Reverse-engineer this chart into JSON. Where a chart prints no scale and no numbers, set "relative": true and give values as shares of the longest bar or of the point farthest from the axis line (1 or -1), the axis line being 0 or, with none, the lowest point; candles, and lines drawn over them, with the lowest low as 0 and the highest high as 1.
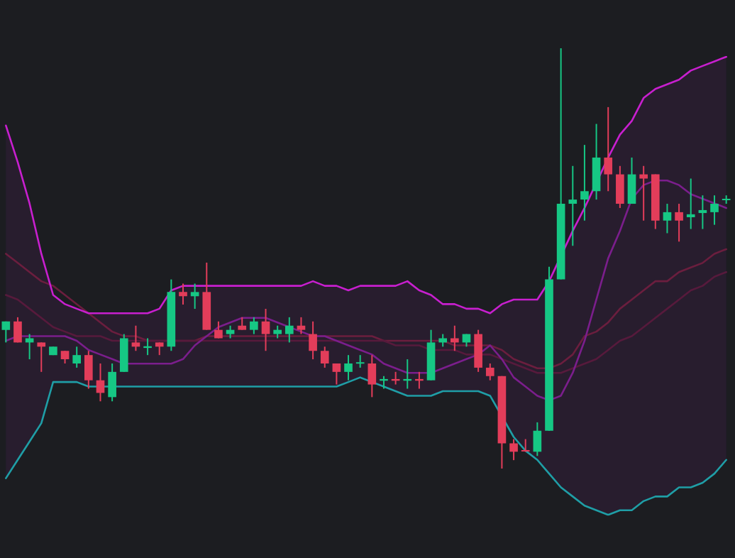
{
  "chart_data": [
    {
      "type": "candlestick",
      "relative": true,
      "grid": false,
      "categories": [
        null,
        null,
        null,
        null,
        null,
        null,
        null,
        null,
        null,
        null,
        null,
        null,
        null,
        null,
        null,
        null,
        null,
        null,
        null,
        null,
        null,
        null,
        null,
        null,
        null,
        null,
        null,
        null,
        null,
        null,
        null,
        null,
        null,
        null,
        null,
        null,
        null,
        null,
        null,
        null,
        null,
        null,
        null,
        null,
        null,
        null,
        null,
        null,
        null,
        null,
        null,
        null,
        null,
        null,
        null,
        null,
        null,
        null,
        null,
        null,
        null,
        null
      ],
      "ohlc": [
        [
          0.33,
          0.35,
          0.3,
          0.35
        ],
        [
          0.35,
          0.36,
          0.3,
          0.3
        ],
        [
          0.3,
          0.32,
          0.26,
          0.31
        ],
        [
          0.3,
          0.3,
          0.23,
          0.29
        ],
        [
          0.27,
          0.29,
          0.27,
          0.29
        ],
        [
          0.28,
          0.28,
          0.25,
          0.26
        ],
        [
          0.25,
          0.29,
          0.24,
          0.27
        ],
        [
          0.27,
          0.28,
          0.19,
          0.21
        ],
        [
          0.21,
          0.25,
          0.16,
          0.18
        ],
        [
          0.17,
          0.25,
          0.16,
          0.23
        ],
        [
          0.23,
          0.32,
          0.23,
          0.31
        ],
        [
          0.3,
          0.34,
          0.28,
          0.29
        ],
        [
          0.287,
          0.31,
          0.27,
          0.291
        ],
        [
          0.3,
          0.3,
          0.27,
          0.29
        ],
        [
          0.29,
          0.45,
          0.28,
          0.42
        ],
        [
          0.42,
          0.44,
          0.39,
          0.41
        ],
        [
          0.41,
          0.44,
          0.38,
          0.42
        ],
        [
          0.42,
          0.49,
          0.33,
          0.33
        ],
        [
          0.33,
          0.35,
          0.31,
          0.31
        ],
        [
          0.32,
          0.34,
          0.31,
          0.33
        ],
        [
          0.34,
          0.36,
          0.33,
          0.33
        ],
        [
          0.33,
          0.36,
          0.32,
          0.35
        ],
        [
          0.35,
          0.38,
          0.28,
          0.32
        ],
        [
          0.32,
          0.34,
          0.31,
          0.33
        ],
        [
          0.32,
          0.36,
          0.3,
          0.34
        ],
        [
          0.34,
          0.36,
          0.32,
          0.33
        ],
        [
          0.32,
          0.35,
          0.26,
          0.28
        ],
        [
          0.28,
          0.29,
          0.24,
          0.25
        ],
        [
          0.25,
          0.25,
          0.2,
          0.23
        ],
        [
          0.23,
          0.27,
          0.21,
          0.25
        ],
        [
          0.25,
          0.27,
          0.24,
          0.253
        ],
        [
          0.25,
          0.27,
          0.17,
          0.2
        ],
        [
          0.209,
          0.22,
          0.19,
          0.213
        ],
        [
          0.213,
          0.23,
          0.2,
          0.209
        ],
        [
          0.209,
          0.26,
          0.19,
          0.213
        ],
        [
          0.213,
          0.23,
          0.19,
          0.209
        ],
        [
          0.21,
          0.33,
          0.21,
          0.3
        ],
        [
          0.3,
          0.32,
          0.29,
          0.31
        ],
        [
          0.31,
          0.34,
          0.28,
          0.3
        ],
        [
          0.3,
          0.32,
          0.29,
          0.32
        ],
        [
          0.32,
          0.33,
          0.23,
          0.24
        ],
        [
          0.24,
          0.25,
          0.21,
          0.22
        ],
        [
          0.22,
          0.22,
          0,
          0.06
        ],
        [
          0.06,
          0.07,
          0.02,
          0.04
        ],
        [
          0.044,
          0.07,
          0.04,
          0.041
        ],
        [
          0.04,
          0.11,
          0.03,
          0.09
        ],
        [
          0.09,
          0.48,
          0.09,
          0.45
        ],
        [
          0.45,
          1,
          0.45,
          0.63
        ],
        [
          0.63,
          0.72,
          0.53,
          0.64
        ],
        [
          0.64,
          0.77,
          0.59,
          0.66
        ],
        [
          0.66,
          0.82,
          0.64,
          0.74
        ],
        [
          0.74,
          0.86,
          0.66,
          0.7
        ],
        [
          0.7,
          0.72,
          0.62,
          0.63
        ],
        [
          0.63,
          0.74,
          0.63,
          0.7
        ],
        [
          0.7,
          0.72,
          0.59,
          0.69
        ],
        [
          0.7,
          0.7,
          0.57,
          0.59
        ],
        [
          0.59,
          0.63,
          0.56,
          0.61
        ],
        [
          0.61,
          0.63,
          0.54,
          0.59
        ],
        [
          0.598,
          0.69,
          0.57,
          0.605
        ],
        [
          0.608,
          0.65,
          0.57,
          0.615
        ],
        [
          0.61,
          0.65,
          0.58,
          0.63
        ],
        [
          0.639,
          0.65,
          0.63,
          0.642
        ]
      ],
      "colors": [
        "#16c784",
        "#e33d5a",
        "#16c784",
        "#e33d5a",
        "#16c784",
        "#e33d5a",
        "#16c784",
        "#e33d5a",
        "#e33d5a",
        "#16c784",
        "#16c784",
        "#e33d5a",
        "#16c784",
        "#e33d5a",
        "#16c784",
        "#e33d5a",
        "#16c784",
        "#e33d5a",
        "#e33d5a",
        "#16c784",
        "#e33d5a",
        "#16c784",
        "#e33d5a",
        "#16c784",
        "#16c784",
        "#e33d5a",
        "#e33d5a",
        "#e33d5a",
        "#e33d5a",
        "#16c784",
        "#16c784",
        "#e33d5a",
        "#16c784",
        "#e33d5a",
        "#16c784",
        "#e33d5a",
        "#16c784",
        "#16c784",
        "#e33d5a",
        "#16c784",
        "#e33d5a",
        "#e33d5a",
        "#e33d5a",
        "#e33d5a",
        "#e33d5a",
        "#16c784",
        "#16c784",
        "#16c784",
        "#16c784",
        "#16c784",
        "#16c784",
        "#e33d5a",
        "#e33d5a",
        "#16c784",
        "#e33d5a",
        "#e33d5a",
        "#16c784",
        "#e33d5a",
        "#16c784",
        "#16c784",
        "#16c784",
        "#16c784"
      ]
    },
    {
      "type": "line",
      "relative": true,
      "grid": false,
      "marker": "none",
      "line_style": "solid",
      "categories": [
        null,
        null,
        null,
        null,
        null,
        null,
        null,
        null,
        null,
        null,
        null,
        null,
        null,
        null,
        null,
        null,
        null,
        null,
        null,
        null,
        null,
        null,
        null,
        null,
        null,
        null,
        null,
        null,
        null,
        null,
        null,
        null,
        null,
        null,
        null,
        null,
        null,
        null,
        null,
        null,
        null,
        null,
        null,
        null,
        null,
        null,
        null,
        null,
        null,
        null,
        null,
        null,
        null,
        null,
        null,
        null,
        null,
        null,
        null,
        null,
        null,
        null
      ],
      "series": [
        {
          "color": "#6b1e3e",
          "values": [
            0.57,
            0.55,
            0.53,
            0.51,
            0.5,
            0.48,
            0.46,
            0.44,
            0.42,
            0.4,
            0.39,
            0.39,
            0.38,
            0.38,
            0.38,
            0.38,
            0.38,
            0.39,
            0.39,
            0.39,
            0.39,
            0.39,
            0.39,
            0.39,
            0.39,
            0.39,
            0.39,
            0.39,
            0.39,
            0.39,
            0.39,
            0.39,
            0.38,
            0.38,
            0.38,
            0.38,
            0.38,
            0.38,
            0.37,
            0.37,
            0.37,
            0.37,
            0.36,
            0.34,
            0.33,
            0.32,
            0.32,
            0.33,
            0.35,
            0.39,
            0.4,
            0.42,
            0.45,
            0.47,
            0.49,
            0.51,
            0.51,
            0.53,
            0.54,
            0.55,
            0.57,
            0.58
          ]
        },
        {
          "color": "#571a3c",
          "values": [
            0.48,
            0.47,
            0.45,
            0.43,
            0.41,
            0.4,
            0.39,
            0.39,
            0.39,
            0.38,
            0.38,
            0.38,
            0.38,
            0.38,
            0.38,
            0.38,
            0.38,
            0.38,
            0.38,
            0.38,
            0.38,
            0.38,
            0.38,
            0.38,
            0.38,
            0.38,
            0.38,
            0.38,
            0.38,
            0.38,
            0.38,
            0.38,
            0.38,
            0.37,
            0.37,
            0.37,
            0.36,
            0.36,
            0.36,
            0.35,
            0.35,
            0.35,
            0.34,
            0.33,
            0.32,
            0.31,
            0.31,
            0.31,
            0.32,
            0.33,
            0.34,
            0.36,
            0.38,
            0.39,
            0.41,
            0.43,
            0.45,
            0.47,
            0.49,
            0.5,
            0.52,
            0.53
          ]
        },
        {
          "color": "#7b1e8c",
          "values": [
            0.38,
            0.39,
            0.39,
            0.39,
            0.39,
            0.39,
            0.38,
            0.36,
            0.35,
            0.34,
            0.33,
            0.33,
            0.33,
            0.33,
            0.33,
            0.34,
            0.37,
            0.39,
            0.41,
            0.42,
            0.43,
            0.43,
            0.43,
            0.42,
            0.41,
            0.4,
            0.39,
            0.39,
            0.38,
            0.37,
            0.36,
            0.35,
            0.33,
            0.32,
            0.31,
            0.31,
            0.31,
            0.32,
            0.33,
            0.34,
            0.35,
            0.37,
            0.34,
            0.3,
            0.28,
            0.26,
            0.25,
            0.26,
            0.31,
            0.38,
            0.47,
            0.56,
            0.62,
            0.69,
            0.72,
            0.73,
            0.73,
            0.72,
            0.7,
            0.69,
            0.68,
            0.67
          ],
          "upper": [
            0.85,
            0.77,
            0.68,
            0.57,
            0.48,
            0.46,
            0.45,
            0.44,
            0.44,
            0.44,
            0.44,
            0.44,
            0.44,
            0.45,
            0.49,
            0.5,
            0.5,
            0.5,
            0.5,
            0.5,
            0.5,
            0.5,
            0.5,
            0.5,
            0.5,
            0.5,
            0.51,
            0.5,
            0.5,
            0.49,
            0.5,
            0.5,
            0.5,
            0.5,
            0.51,
            0.49,
            0.48,
            0.46,
            0.46,
            0.45,
            0.45,
            0.44,
            0.46,
            0.47,
            0.47,
            0.47,
            0.51,
            0.57,
            0.62,
            0.67,
            0.73,
            0.78,
            0.83,
            0.86,
            0.91,
            0.93,
            0.94,
            0.95,
            0.97,
            0.98,
            0.99,
            1
          ],
          "lower": [
            0.08,
            0.12,
            0.16,
            0.2,
            0.29,
            0.29,
            0.29,
            0.28,
            0.28,
            0.28,
            0.28,
            0.28,
            0.28,
            0.28,
            0.28,
            0.28,
            0.28,
            0.28,
            0.28,
            0.28,
            0.28,
            0.28,
            0.28,
            0.28,
            0.28,
            0.28,
            0.28,
            0.28,
            0.28,
            0.29,
            0.3,
            0.29,
            0.28,
            0.27,
            0.26,
            0.26,
            0.26,
            0.27,
            0.27,
            0.27,
            0.27,
            0.26,
            0.21,
            0.17,
            0.14,
            0.12,
            0.09,
            0.06,
            0.04,
            0.02,
            0.01,
            0,
            0.01,
            0.01,
            0.03,
            0.04,
            0.04,
            0.06,
            0.06,
            0.07,
            0.09,
            0.12
          ]
        },
        {
          "color": "#c81fcf",
          "values": [
            0.85,
            0.77,
            0.68,
            0.57,
            0.48,
            0.46,
            0.45,
            0.44,
            0.44,
            0.44,
            0.44,
            0.44,
            0.44,
            0.45,
            0.49,
            0.5,
            0.5,
            0.5,
            0.5,
            0.5,
            0.5,
            0.5,
            0.5,
            0.5,
            0.5,
            0.5,
            0.51,
            0.5,
            0.5,
            0.49,
            0.5,
            0.5,
            0.5,
            0.5,
            0.51,
            0.49,
            0.48,
            0.46,
            0.46,
            0.45,
            0.45,
            0.44,
            0.46,
            0.47,
            0.47,
            0.47,
            0.51,
            null,
            0.62,
            0.67,
            null,
            0.78,
            0.83,
            0.86,
            0.91,
            0.93,
            0.94,
            0.95,
            0.97,
            0.98,
            0.99,
            1
          ]
        },
        {
          "color": "#1f9ea6",
          "values": [
            0.08,
            0.12,
            0.16,
            0.2,
            0.29,
            0.29,
            0.29,
            0.28,
            0.28,
            0.28,
            0.28,
            0.28,
            0.28,
            0.28,
            0.28,
            0.28,
            0.28,
            0.28,
            0.28,
            0.28,
            0.28,
            0.28,
            0.28,
            0.28,
            0.28,
            0.28,
            0.28,
            0.28,
            0.28,
            0.29,
            0.3,
            0.29,
            0.28,
            0.27,
            0.26,
            0.26,
            0.26,
            0.27,
            0.27,
            0.27,
            0.27,
            0.26,
            null,
            0.17,
            0.14,
            0.12,
            0.09,
            0.06,
            0.04,
            0.02,
            0.01,
            0,
            0.01,
            0.01,
            0.03,
            0.04,
            0.04,
            0.06,
            0.06,
            0.07,
            0.09,
            0.12
          ]
        }
      ]
    }
  ]
}
